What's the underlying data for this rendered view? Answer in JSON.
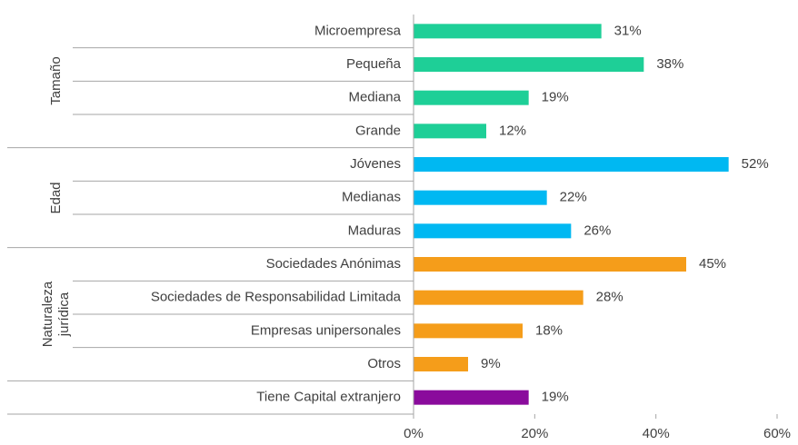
{
  "chart_data": {
    "type": "bar",
    "orientation": "horizontal",
    "xlim": [
      0,
      60
    ],
    "xticks": [
      {
        "value": 0,
        "label": "0%"
      },
      {
        "value": 20,
        "label": "20%"
      },
      {
        "value": 40,
        "label": "40%"
      },
      {
        "value": 60,
        "label": "60%"
      }
    ],
    "groups": [
      {
        "name": "Tamaño",
        "color": "#1ecf97",
        "categories": [
          "Microempresa",
          "Pequeña",
          "Mediana",
          "Grande"
        ],
        "values": [
          31,
          38,
          19,
          12
        ],
        "value_labels": [
          "31%",
          "38%",
          "19%",
          "12%"
        ]
      },
      {
        "name": "Edad",
        "color": "#00b8f2",
        "categories": [
          "Jóvenes",
          "Medianas",
          "Maduras"
        ],
        "values": [
          52,
          22,
          26
        ],
        "value_labels": [
          "52%",
          "22%",
          "26%"
        ]
      },
      {
        "name": "Naturaleza jurídica",
        "color": "#f59d1a",
        "categories": [
          "Sociedades Anónimas",
          "Sociedades de Responsabilidad Limitada",
          "Empresas unipersonales",
          "Otros"
        ],
        "values": [
          45,
          28,
          18,
          9
        ],
        "value_labels": [
          "45%",
          "28%",
          "18%",
          "9%"
        ]
      },
      {
        "color": "#8a0b9c",
        "categories": [
          "Tiene Capital extranjero"
        ],
        "values": [
          19
        ],
        "value_labels": [
          "19%"
        ]
      }
    ]
  }
}
